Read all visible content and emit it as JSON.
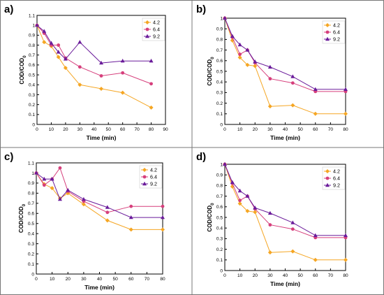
{
  "figure": {
    "series_colors": [
      "#F5A623",
      "#D63F7C",
      "#6A1B9A"
    ],
    "series_markers": [
      "diamond",
      "circle",
      "triangle"
    ]
  },
  "chart_data": [
    {
      "panel_label": "a)",
      "type": "line",
      "xlabel": "Time (min)",
      "ylabel": "COD/COD0",
      "xlim": [
        0,
        90
      ],
      "ylim": [
        0,
        1.1
      ],
      "xticks": [
        0,
        10,
        20,
        30,
        40,
        50,
        60,
        70,
        80,
        90
      ],
      "yticks": [
        0,
        0.1,
        0.2,
        0.3,
        0.4,
        0.5,
        0.6,
        0.7,
        0.8,
        0.9,
        1,
        1.1
      ],
      "legend_position": "top-right",
      "series": [
        {
          "name": "4.2",
          "x": [
            0,
            5,
            10,
            15,
            20,
            30,
            45,
            60,
            80
          ],
          "y": [
            1.0,
            0.83,
            0.79,
            0.68,
            0.57,
            0.4,
            0.36,
            0.32,
            0.17
          ]
        },
        {
          "name": "6.4",
          "x": [
            0,
            5,
            10,
            15,
            20,
            30,
            45,
            60,
            80
          ],
          "y": [
            1.0,
            0.92,
            0.8,
            0.8,
            0.67,
            0.58,
            0.49,
            0.52,
            0.41
          ]
        },
        {
          "name": "9.2",
          "x": [
            0,
            5,
            10,
            15,
            20,
            30,
            45,
            60,
            80
          ],
          "y": [
            1.0,
            0.94,
            0.82,
            0.73,
            0.66,
            0.83,
            0.62,
            0.64,
            0.64
          ]
        }
      ]
    },
    {
      "panel_label": "b)",
      "type": "line",
      "xlabel": "Time (min)",
      "ylabel": "COD/COD0",
      "xlim": [
        0,
        80
      ],
      "ylim": [
        0,
        1.0
      ],
      "xticks": [
        0,
        10,
        20,
        30,
        40,
        50,
        60,
        70,
        80
      ],
      "yticks": [
        0,
        0.1,
        0.2,
        0.3,
        0.4,
        0.5,
        0.6,
        0.7,
        0.8,
        0.9,
        1
      ],
      "legend_position": "top-right",
      "series": [
        {
          "name": "4.2",
          "x": [
            0,
            5,
            10,
            15,
            20,
            30,
            45,
            60,
            80
          ],
          "y": [
            1.0,
            0.79,
            0.63,
            0.56,
            0.55,
            0.17,
            0.18,
            0.1,
            0.1
          ]
        },
        {
          "name": "6.4",
          "x": [
            0,
            5,
            10,
            15,
            20,
            30,
            45,
            60,
            80
          ],
          "y": [
            1.0,
            0.82,
            0.66,
            0.7,
            0.58,
            0.43,
            0.39,
            0.31,
            0.31
          ]
        },
        {
          "name": "9.2",
          "x": [
            0,
            5,
            10,
            15,
            20,
            30,
            45,
            60,
            80
          ],
          "y": [
            1.0,
            0.83,
            0.75,
            0.7,
            0.59,
            0.54,
            0.45,
            0.33,
            0.33
          ]
        }
      ]
    },
    {
      "panel_label": "c)",
      "type": "line",
      "xlabel": "Time (min)",
      "ylabel": "COD/COD0",
      "xlim": [
        0,
        80
      ],
      "ylim": [
        0,
        1.1
      ],
      "xticks": [
        0,
        10,
        20,
        30,
        40,
        50,
        60,
        70,
        80
      ],
      "yticks": [
        0,
        0.1,
        0.2,
        0.3,
        0.4,
        0.5,
        0.6,
        0.7,
        0.8,
        0.9,
        1,
        1.1
      ],
      "legend_position": "top-right",
      "series": [
        {
          "name": "4.2",
          "x": [
            0,
            5,
            10,
            15,
            20,
            30,
            45,
            60,
            80
          ],
          "y": [
            1.0,
            0.89,
            0.85,
            0.75,
            0.8,
            0.69,
            0.53,
            0.44,
            0.44
          ]
        },
        {
          "name": "6.4",
          "x": [
            0,
            5,
            10,
            15,
            20,
            30,
            45,
            60,
            80
          ],
          "y": [
            1.0,
            0.88,
            0.94,
            1.05,
            0.82,
            0.72,
            0.61,
            0.67,
            0.67
          ]
        },
        {
          "name": "9.2",
          "x": [
            0,
            5,
            10,
            15,
            20,
            30,
            45,
            60,
            80
          ],
          "y": [
            1.0,
            0.94,
            0.94,
            0.74,
            0.83,
            0.74,
            0.66,
            0.56,
            0.56
          ]
        }
      ]
    },
    {
      "panel_label": "d)",
      "type": "line",
      "xlabel": "Time (min)",
      "ylabel": "COD/COD0",
      "xlim": [
        0,
        80
      ],
      "ylim": [
        0,
        1.0
      ],
      "xticks": [
        0,
        10,
        20,
        30,
        40,
        50,
        60,
        70,
        80
      ],
      "yticks": [
        0,
        0.1,
        0.2,
        0.3,
        0.4,
        0.5,
        0.6,
        0.7,
        0.8,
        0.9,
        1
      ],
      "legend_position": "top-right",
      "series": [
        {
          "name": "4.2",
          "x": [
            0,
            5,
            10,
            15,
            20,
            30,
            45,
            60,
            80
          ],
          "y": [
            1.0,
            0.79,
            0.63,
            0.56,
            0.55,
            0.17,
            0.18,
            0.1,
            0.1
          ]
        },
        {
          "name": "6.4",
          "x": [
            0,
            5,
            10,
            15,
            20,
            30,
            45,
            60,
            80
          ],
          "y": [
            1.0,
            0.82,
            0.66,
            0.7,
            0.58,
            0.43,
            0.39,
            0.31,
            0.31
          ]
        },
        {
          "name": "9.2",
          "x": [
            0,
            5,
            10,
            15,
            20,
            30,
            45,
            60,
            80
          ],
          "y": [
            1.0,
            0.83,
            0.75,
            0.7,
            0.59,
            0.54,
            0.45,
            0.33,
            0.33
          ]
        }
      ]
    }
  ]
}
